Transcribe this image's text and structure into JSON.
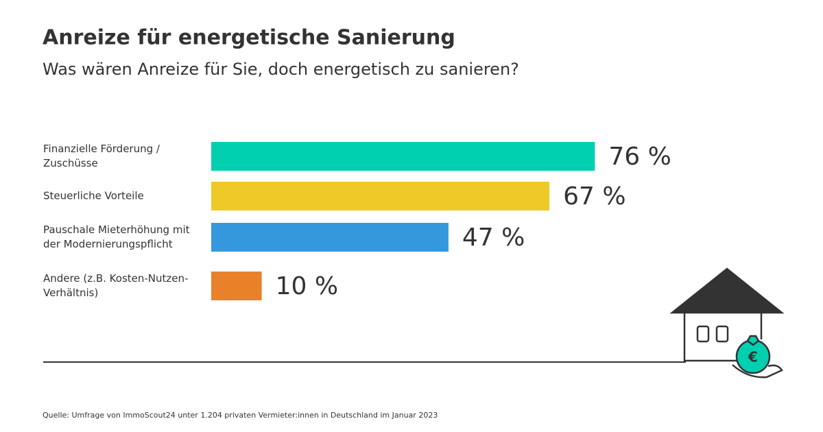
{
  "chart_data": {
    "type": "bar",
    "orientation": "horizontal",
    "title": "Anreize für energetische Sanierung",
    "subtitle": "Was wären Anreize für Sie, doch energetisch zu sanieren?",
    "categories": [
      "Finanzielle Förderung / Zuschüsse",
      "Steuerliche Vorteile",
      "Pauschale Mieterhöhung mit der Modernierungspflicht",
      "Andere (z.B. Kosten-Nutzen-Verhältnis)"
    ],
    "values": [
      76,
      67,
      47,
      10
    ],
    "value_labels": [
      "76 %",
      "67 %",
      "47 %",
      "10 %"
    ],
    "colors": [
      "#00d0b0",
      "#efc928",
      "#3698dc",
      "#e8812a"
    ],
    "source": "Quelle: Umfrage von ImmoScout24 unter 1.204 privaten Vermieter:innen in Deutschland im Januar 2023"
  }
}
